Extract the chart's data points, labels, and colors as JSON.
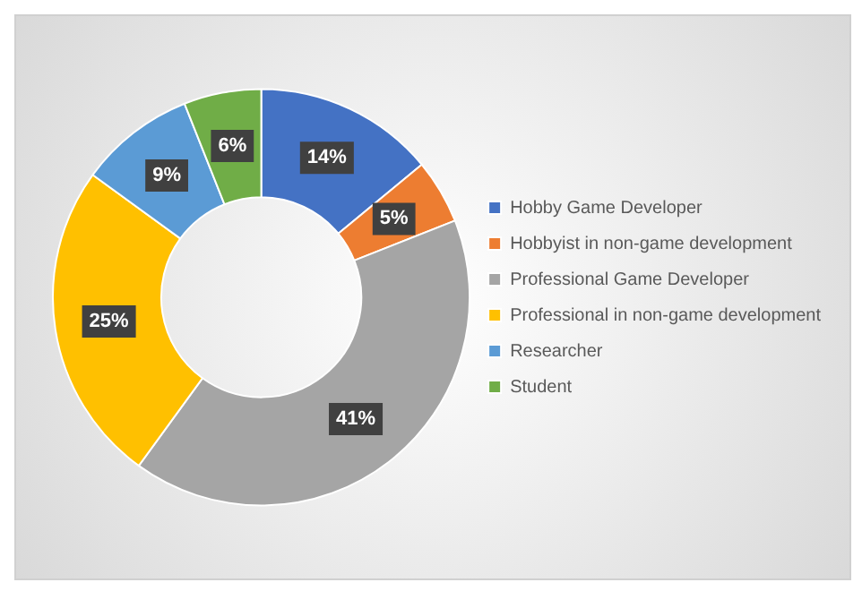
{
  "chart_data": {
    "type": "donut",
    "categories": [
      "Hobby Game Developer",
      "Hobbyist in non-game development",
      "Professional Game Developer",
      "Professional in non-game development",
      "Researcher",
      "Student"
    ],
    "values": [
      14,
      5,
      41,
      25,
      9,
      6
    ],
    "value_labels": [
      "14%",
      "5%",
      "41%",
      "25%",
      "9%",
      "6%"
    ],
    "colors": [
      "#4472c4",
      "#ed7d31",
      "#a5a5a5",
      "#ffc000",
      "#5b9bd5",
      "#70ad47"
    ],
    "legend": "right"
  }
}
